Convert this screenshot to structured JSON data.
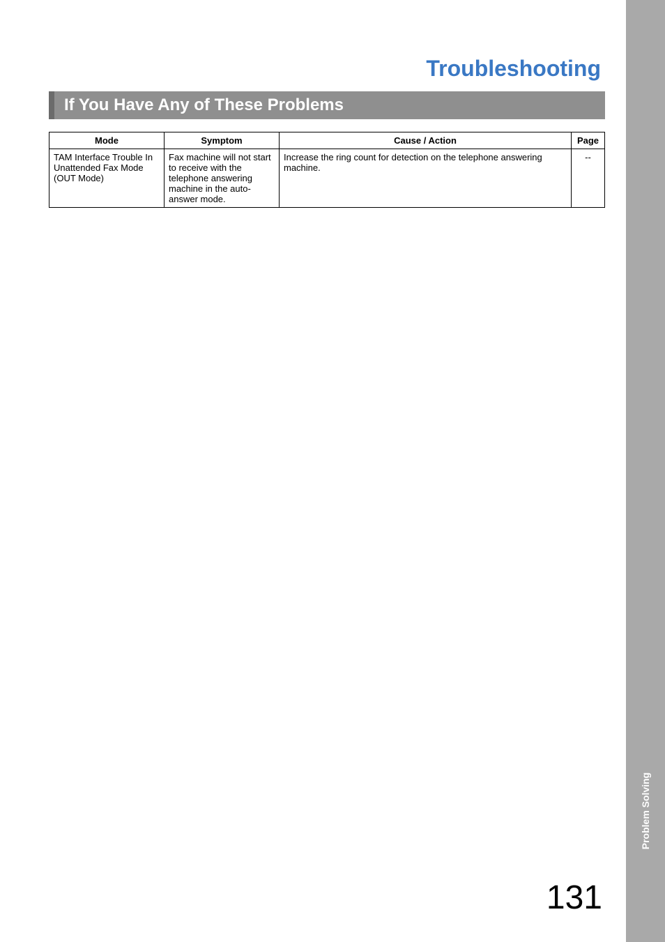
{
  "title": "Troubleshooting",
  "section_heading": "If You Have Any of These Problems",
  "side_tab": "Problem Solving",
  "page_number": "131",
  "table": {
    "headers": {
      "mode": "Mode",
      "symptom": "Symptom",
      "cause": "Cause / Action",
      "page": "Page"
    },
    "rows": [
      {
        "mode": "TAM Interface Trouble In Unattended Fax Mode (OUT Mode)",
        "symptom": "Fax machine will not start to receive with the telephone answering machine in the auto-answer mode.",
        "cause": "Increase the ring count for detection on the telephone answering machine.",
        "page": "--"
      }
    ]
  },
  "colors": {
    "title_color": "#3a78c4",
    "section_bg": "#8f8f8f",
    "section_border": "#6b6b6b",
    "side_bg": "#a9a9a9",
    "side_text": "#ffffff",
    "border": "#000000"
  }
}
